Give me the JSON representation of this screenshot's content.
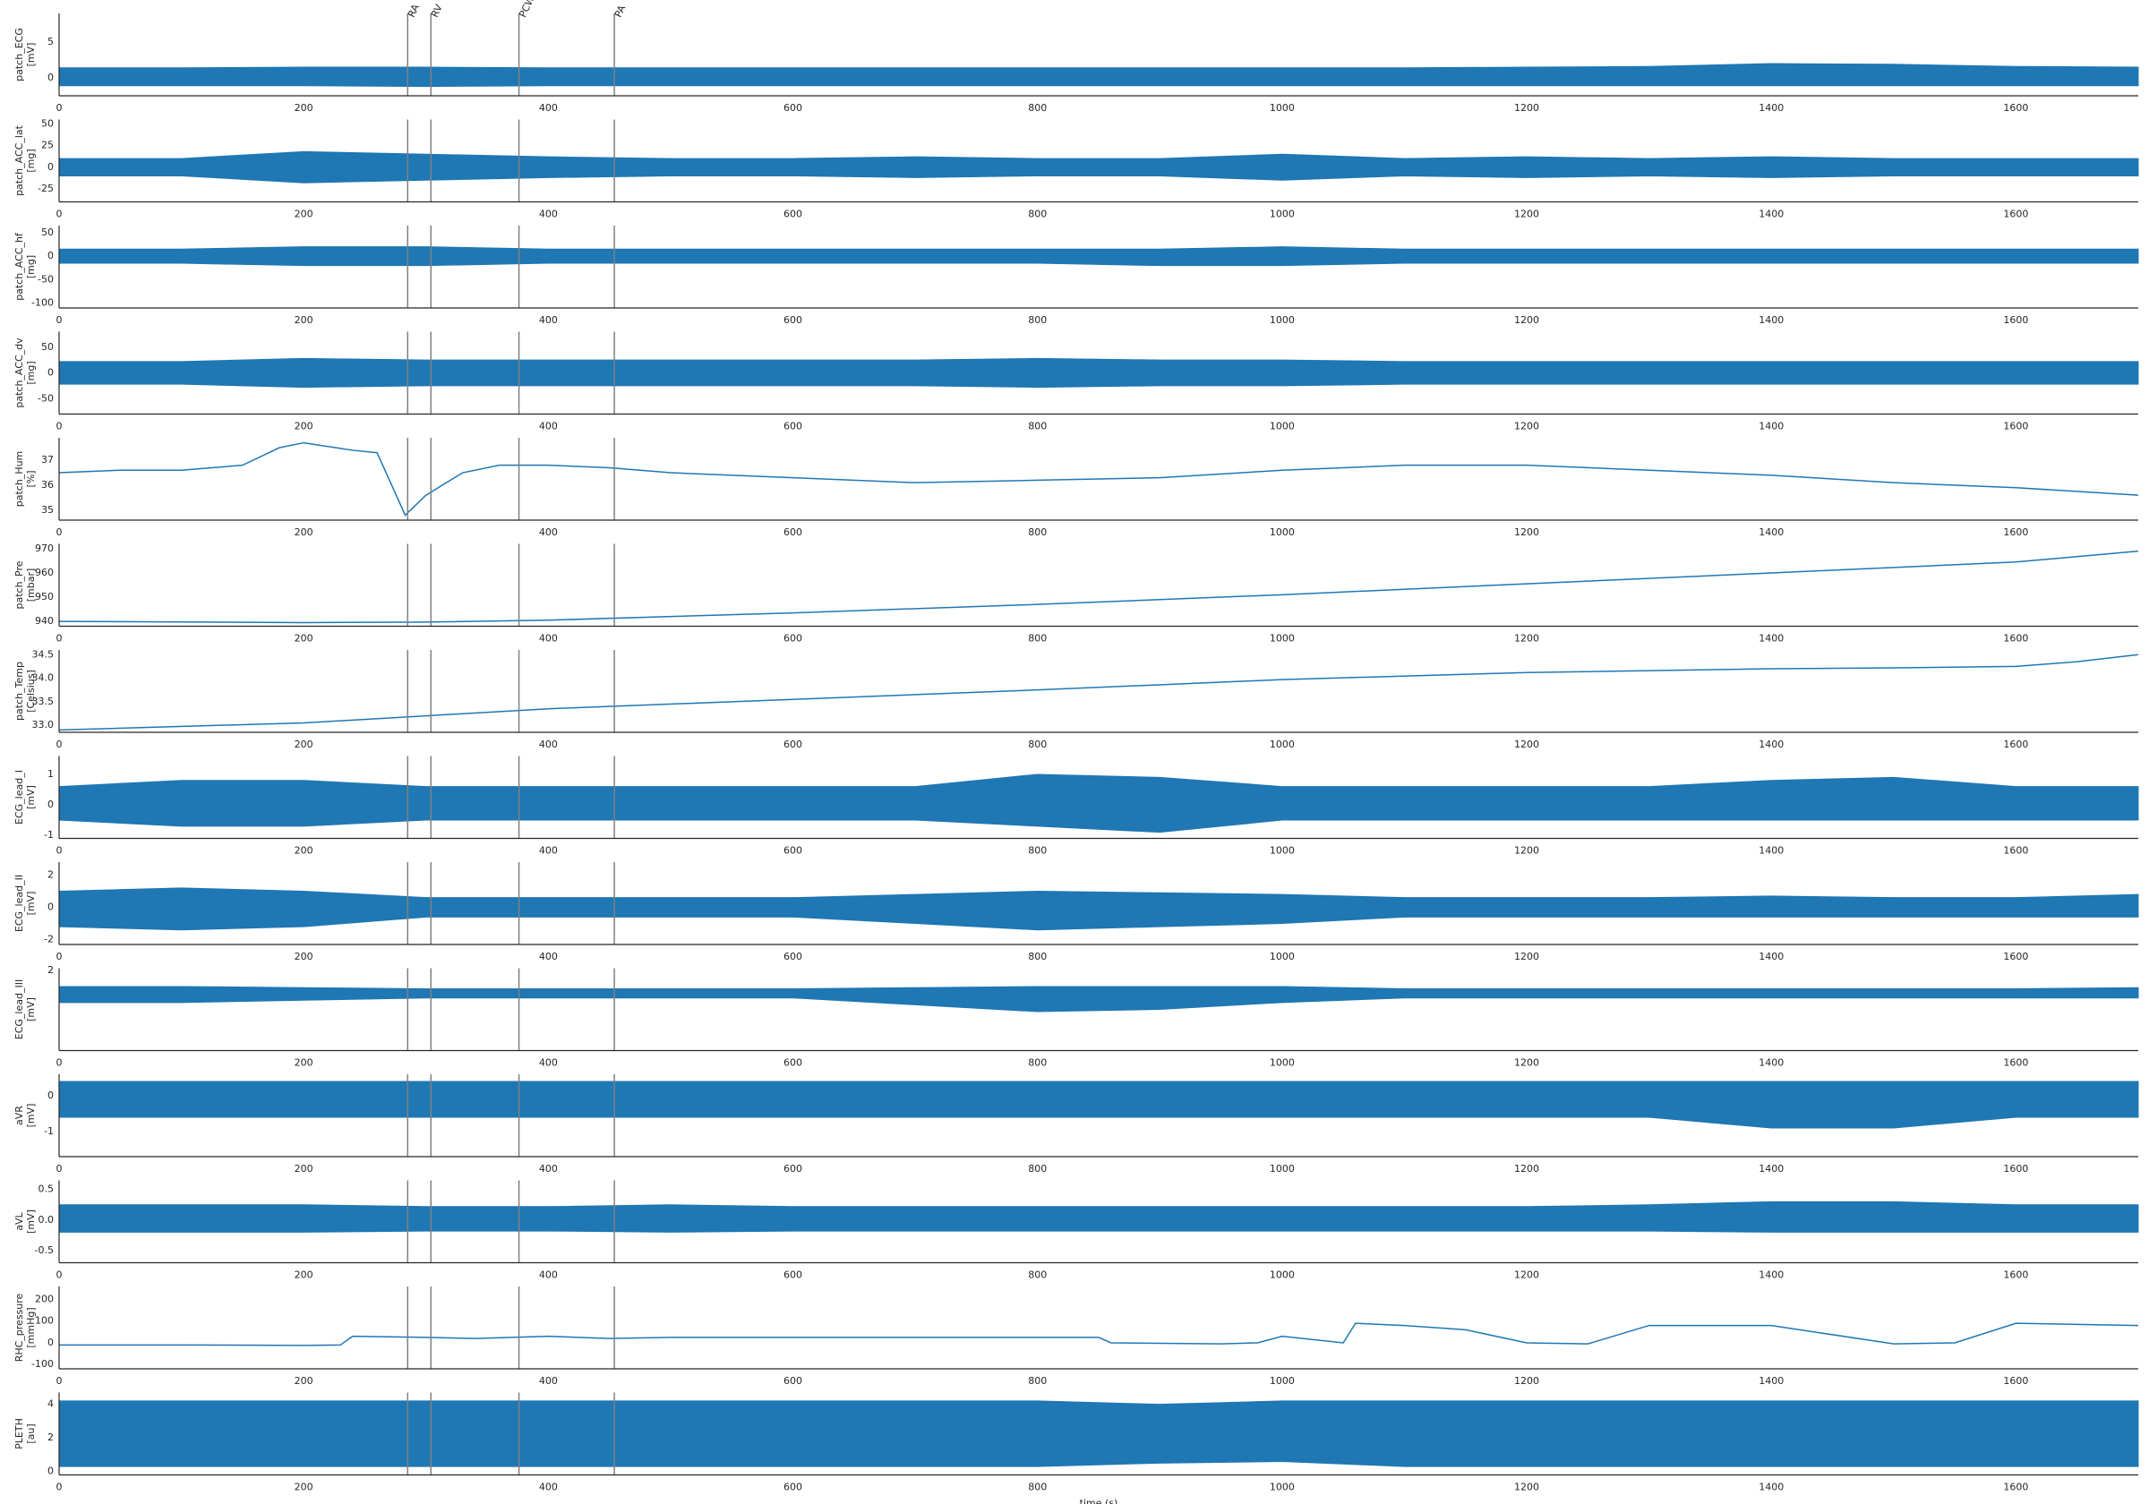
{
  "chart_data": [
    {
      "type": "band",
      "ylabel": [
        "patch_ECG",
        "[mV]"
      ],
      "color": "#1f77b4",
      "xlim": [
        0,
        1700
      ],
      "xticks": [
        0,
        200,
        400,
        600,
        800,
        1000,
        1200,
        1400,
        1600
      ],
      "ylim": [
        -2.5,
        9
      ],
      "yticks": [
        0,
        5
      ],
      "x": [
        0,
        100,
        200,
        300,
        400,
        500,
        600,
        700,
        800,
        900,
        1000,
        1100,
        1200,
        1300,
        1400,
        1500,
        1600,
        1700
      ],
      "high": [
        1.4,
        1.4,
        1.5,
        1.5,
        1.4,
        1.4,
        1.4,
        1.4,
        1.4,
        1.4,
        1.4,
        1.4,
        1.5,
        1.6,
        2.0,
        1.9,
        1.6,
        1.5
      ],
      "low": [
        -1.1,
        -1.1,
        -1.1,
        -1.2,
        -1.1,
        -1.1,
        -1.1,
        -1.1,
        -1.1,
        -1.1,
        -1.1,
        -1.1,
        -1.1,
        -1.1,
        -1.1,
        -1.1,
        -1.1,
        -1.1
      ],
      "vlines": [
        285,
        304,
        376,
        454
      ],
      "vline_labels": [
        "RA",
        "RV",
        "PCW",
        "PA"
      ]
    },
    {
      "type": "band",
      "ylabel": [
        "patch_ACC_lat",
        "[mg]"
      ],
      "color": "#1f77b4",
      "xlim": [
        0,
        1700
      ],
      "xticks": [
        0,
        200,
        400,
        600,
        800,
        1000,
        1200,
        1400,
        1600
      ],
      "ylim": [
        -40,
        55
      ],
      "yticks": [
        -25,
        0,
        25,
        50
      ],
      "x": [
        0,
        100,
        200,
        300,
        400,
        500,
        600,
        700,
        800,
        900,
        1000,
        1100,
        1200,
        1300,
        1400,
        1500,
        1600,
        1700
      ],
      "high": [
        10,
        10,
        18,
        15,
        12,
        10,
        10,
        12,
        10,
        10,
        15,
        10,
        12,
        10,
        12,
        10,
        10,
        10
      ],
      "low": [
        -10,
        -10,
        -18,
        -15,
        -12,
        -10,
        -10,
        -12,
        -10,
        -10,
        -15,
        -10,
        -12,
        -10,
        -12,
        -10,
        -10,
        -10
      ],
      "vlines": [
        285,
        304,
        376,
        454
      ]
    },
    {
      "type": "band",
      "ylabel": [
        "patch_ACC_hf",
        "[mg]"
      ],
      "color": "#1f77b4",
      "xlim": [
        0,
        1700
      ],
      "xticks": [
        0,
        200,
        400,
        600,
        800,
        1000,
        1200,
        1400,
        1600
      ],
      "ylim": [
        -110,
        65
      ],
      "yticks": [
        -100,
        -50,
        0,
        50
      ],
      "x": [
        0,
        100,
        200,
        300,
        400,
        500,
        600,
        700,
        800,
        900,
        1000,
        1100,
        1200,
        1300,
        1400,
        1500,
        1600,
        1700
      ],
      "high": [
        15,
        15,
        20,
        20,
        15,
        15,
        15,
        15,
        15,
        15,
        20,
        15,
        15,
        15,
        15,
        15,
        15,
        15
      ],
      "low": [
        -15,
        -15,
        -20,
        -20,
        -15,
        -15,
        -15,
        -15,
        -15,
        -20,
        -20,
        -15,
        -15,
        -15,
        -15,
        -15,
        -15,
        -15
      ],
      "vlines": [
        285,
        304,
        376,
        454
      ]
    },
    {
      "type": "band",
      "ylabel": [
        "patch_ACC_dv",
        "[mg]"
      ],
      "color": "#1f77b4",
      "xlim": [
        0,
        1700
      ],
      "xticks": [
        0,
        200,
        400,
        600,
        800,
        1000,
        1200,
        1400,
        1600
      ],
      "ylim": [
        -80,
        80
      ],
      "yticks": [
        -50,
        0,
        50
      ],
      "x": [
        0,
        100,
        200,
        300,
        400,
        500,
        600,
        700,
        800,
        900,
        1000,
        1100,
        1200,
        1300,
        1400,
        1500,
        1600,
        1700
      ],
      "high": [
        22,
        22,
        28,
        25,
        25,
        25,
        25,
        25,
        28,
        25,
        25,
        22,
        22,
        22,
        22,
        22,
        22,
        22
      ],
      "low": [
        -22,
        -22,
        -28,
        -25,
        -25,
        -25,
        -25,
        -25,
        -28,
        -25,
        -25,
        -22,
        -22,
        -22,
        -22,
        -22,
        -22,
        -22
      ],
      "vlines": [
        285,
        304,
        376,
        454
      ]
    },
    {
      "type": "line",
      "ylabel": [
        "patch_Hum",
        "[%]"
      ],
      "color": "#1f77b4",
      "xlim": [
        0,
        1700
      ],
      "xticks": [
        0,
        200,
        400,
        600,
        800,
        1000,
        1200,
        1400,
        1600
      ],
      "ylim": [
        34.6,
        37.9
      ],
      "yticks": [
        35,
        36,
        37
      ],
      "x": [
        0,
        50,
        100,
        150,
        180,
        200,
        240,
        260,
        283,
        300,
        330,
        360,
        400,
        450,
        500,
        600,
        700,
        800,
        900,
        1000,
        1100,
        1200,
        1300,
        1400,
        1500,
        1600,
        1700
      ],
      "values": [
        36.5,
        36.6,
        36.6,
        36.8,
        37.5,
        37.7,
        37.4,
        37.3,
        34.8,
        35.6,
        36.5,
        36.8,
        36.8,
        36.7,
        36.5,
        36.3,
        36.1,
        36.2,
        36.3,
        36.6,
        36.8,
        36.8,
        36.6,
        36.4,
        36.1,
        35.9,
        35.6
      ],
      "vlines": [
        285,
        304,
        376,
        454
      ]
    },
    {
      "type": "line",
      "ylabel": [
        "patch_Pre",
        "[mbar]"
      ],
      "color": "#1f77b4",
      "xlim": [
        0,
        1700
      ],
      "xticks": [
        0,
        200,
        400,
        600,
        800,
        1000,
        1200,
        1400,
        1600
      ],
      "ylim": [
        938,
        972
      ],
      "yticks": [
        940,
        950,
        960,
        970
      ],
      "x": [
        0,
        200,
        300,
        400,
        600,
        800,
        1000,
        1200,
        1400,
        1600,
        1700
      ],
      "values": [
        940,
        939.5,
        939.7,
        940.5,
        943.5,
        947,
        951,
        955.5,
        960,
        964.5,
        969
      ],
      "vlines": [
        285,
        304,
        376,
        454
      ]
    },
    {
      "type": "line",
      "ylabel": [
        "patch_Temp",
        "[Celsius]"
      ],
      "color": "#1f77b4",
      "xlim": [
        0,
        1700
      ],
      "xticks": [
        0,
        200,
        400,
        600,
        800,
        1000,
        1200,
        1400,
        1600
      ],
      "ylim": [
        32.85,
        34.6
      ],
      "yticks": [
        {
          "value": 33,
          "label": "33.0"
        },
        33.5,
        {
          "value": 34,
          "label": "34.0"
        },
        34.5
      ],
      "x": [
        0,
        200,
        300,
        400,
        600,
        800,
        1000,
        1200,
        1400,
        1500,
        1600,
        1650,
        1700
      ],
      "values": [
        32.9,
        33.05,
        33.2,
        33.35,
        33.55,
        33.75,
        33.97,
        34.12,
        34.2,
        34.22,
        34.25,
        34.35,
        34.5
      ],
      "vlines": [
        285,
        304,
        376,
        454
      ]
    },
    {
      "type": "band",
      "ylabel": [
        "ECG_lead_I",
        "[mV]"
      ],
      "color": "#1f77b4",
      "xlim": [
        0,
        1700
      ],
      "xticks": [
        0,
        200,
        400,
        600,
        800,
        1000,
        1200,
        1400,
        1600
      ],
      "ylim": [
        -1.1,
        1.6
      ],
      "yticks": [
        -1,
        0,
        1
      ],
      "x": [
        0,
        100,
        200,
        300,
        400,
        500,
        600,
        700,
        800,
        900,
        1000,
        1100,
        1200,
        1300,
        1400,
        1500,
        1600,
        1700
      ],
      "high": [
        0.6,
        0.8,
        0.8,
        0.6,
        0.6,
        0.6,
        0.6,
        0.6,
        1.0,
        0.9,
        0.6,
        0.6,
        0.6,
        0.6,
        0.8,
        0.9,
        0.6,
        0.6
      ],
      "low": [
        -0.5,
        -0.7,
        -0.7,
        -0.5,
        -0.5,
        -0.5,
        -0.5,
        -0.5,
        -0.7,
        -0.9,
        -0.5,
        -0.5,
        -0.5,
        -0.5,
        -0.5,
        -0.5,
        -0.5,
        -0.5
      ],
      "vlines": [
        285,
        304,
        376,
        454
      ]
    },
    {
      "type": "band",
      "ylabel": [
        "ECG_lead_II",
        "[mV]"
      ],
      "color": "#1f77b4",
      "xlim": [
        0,
        1700
      ],
      "xticks": [
        0,
        200,
        400,
        600,
        800,
        1000,
        1200,
        1400,
        1600
      ],
      "ylim": [
        -2.3,
        2.8
      ],
      "yticks": [
        -2,
        0,
        2
      ],
      "x": [
        0,
        100,
        200,
        300,
        400,
        500,
        600,
        700,
        800,
        900,
        1000,
        1100,
        1200,
        1300,
        1400,
        1500,
        1600,
        1700
      ],
      "high": [
        1.0,
        1.2,
        1.0,
        0.6,
        0.6,
        0.6,
        0.6,
        0.8,
        1.0,
        0.9,
        0.8,
        0.6,
        0.6,
        0.6,
        0.7,
        0.6,
        0.6,
        0.8
      ],
      "low": [
        -1.2,
        -1.4,
        -1.2,
        -0.6,
        -0.6,
        -0.6,
        -0.6,
        -1.0,
        -1.4,
        -1.2,
        -1.0,
        -0.6,
        -0.6,
        -0.6,
        -0.6,
        -0.6,
        -0.6,
        -0.6
      ],
      "vlines": [
        285,
        304,
        376,
        454
      ]
    },
    {
      "type": "band",
      "ylabel": [
        "ECG_lead_III",
        "[mV]"
      ],
      "color": "#1f77b4",
      "xlim": [
        0,
        1700
      ],
      "xticks": [
        0,
        200,
        400,
        600,
        800,
        1000,
        1200,
        1400,
        1600
      ],
      "ylim": [
        -5,
        2.2
      ],
      "yticks": [
        2
      ],
      "x": [
        0,
        100,
        200,
        300,
        400,
        500,
        600,
        700,
        800,
        900,
        1000,
        1100,
        1200,
        1300,
        1400,
        1500,
        1600,
        1700
      ],
      "high": [
        0.6,
        0.6,
        0.5,
        0.4,
        0.4,
        0.4,
        0.4,
        0.5,
        0.6,
        0.6,
        0.6,
        0.4,
        0.4,
        0.4,
        0.4,
        0.4,
        0.4,
        0.5
      ],
      "low": [
        -0.8,
        -0.8,
        -0.6,
        -0.4,
        -0.4,
        -0.4,
        -0.4,
        -1.0,
        -1.6,
        -1.4,
        -0.8,
        -0.4,
        -0.4,
        -0.4,
        -0.4,
        -0.4,
        -0.4,
        -0.4
      ],
      "vlines": [
        285,
        304,
        376,
        454
      ]
    },
    {
      "type": "band",
      "ylabel": [
        "aVR",
        "[mV]"
      ],
      "color": "#1f77b4",
      "xlim": [
        0,
        1700
      ],
      "xticks": [
        0,
        200,
        400,
        600,
        800,
        1000,
        1200,
        1400,
        1600
      ],
      "ylim": [
        -1.7,
        0.6
      ],
      "yticks": [
        -1,
        0
      ],
      "x": [
        0,
        100,
        200,
        300,
        400,
        500,
        600,
        700,
        800,
        900,
        1000,
        1100,
        1200,
        1300,
        1400,
        1500,
        1600,
        1700
      ],
      "high": [
        0.4,
        0.4,
        0.4,
        0.4,
        0.4,
        0.4,
        0.4,
        0.4,
        0.4,
        0.4,
        0.4,
        0.4,
        0.4,
        0.4,
        0.4,
        0.4,
        0.4,
        0.4
      ],
      "low": [
        -0.6,
        -0.6,
        -0.6,
        -0.6,
        -0.6,
        -0.6,
        -0.6,
        -0.6,
        -0.6,
        -0.6,
        -0.6,
        -0.6,
        -0.6,
        -0.6,
        -0.9,
        -0.9,
        -0.6,
        -0.6
      ],
      "vlines": [
        285,
        304,
        376,
        454
      ]
    },
    {
      "type": "band",
      "ylabel": [
        "aVL",
        "[mV]"
      ],
      "color": "#1f77b4",
      "xlim": [
        0,
        1700
      ],
      "xticks": [
        0,
        200,
        400,
        600,
        800,
        1000,
        1200,
        1400,
        1600
      ],
      "ylim": [
        -0.7,
        0.65
      ],
      "yticks": [
        -0.5,
        {
          "value": 0,
          "label": "0.0"
        },
        0.5
      ],
      "x": [
        0,
        100,
        200,
        300,
        400,
        500,
        600,
        700,
        800,
        900,
        1000,
        1100,
        1200,
        1300,
        1400,
        1500,
        1600,
        1700
      ],
      "high": [
        0.25,
        0.25,
        0.25,
        0.22,
        0.22,
        0.25,
        0.22,
        0.22,
        0.22,
        0.22,
        0.22,
        0.22,
        0.22,
        0.25,
        0.3,
        0.3,
        0.25,
        0.25
      ],
      "low": [
        -0.2,
        -0.2,
        -0.2,
        -0.18,
        -0.18,
        -0.2,
        -0.18,
        -0.18,
        -0.18,
        -0.18,
        -0.18,
        -0.18,
        -0.18,
        -0.18,
        -0.2,
        -0.2,
        -0.2,
        -0.2
      ],
      "vlines": [
        285,
        304,
        376,
        454
      ]
    },
    {
      "type": "line",
      "ylabel": [
        "RHC_pressure",
        "[mmHg]"
      ],
      "color": "#1f77b4",
      "xlim": [
        0,
        1700
      ],
      "xticks": [
        0,
        200,
        400,
        600,
        800,
        1000,
        1200,
        1400,
        1600
      ],
      "ylim": [
        -120,
        260
      ],
      "yticks": [
        -100,
        0,
        100,
        200
      ],
      "x": [
        0,
        100,
        200,
        230,
        240,
        300,
        340,
        400,
        450,
        500,
        600,
        700,
        850,
        860,
        950,
        980,
        1000,
        1050,
        1060,
        1100,
        1150,
        1200,
        1250,
        1300,
        1400,
        1500,
        1550,
        1600,
        1700
      ],
      "values": [
        -10,
        -10,
        -12,
        -10,
        30,
        25,
        20,
        30,
        20,
        25,
        25,
        25,
        25,
        0,
        -5,
        0,
        30,
        0,
        90,
        80,
        60,
        0,
        -5,
        80,
        80,
        -5,
        0,
        90,
        80
      ],
      "vlines": [
        285,
        304,
        376,
        454
      ]
    },
    {
      "type": "band",
      "ylabel": [
        "PLETH",
        "[au]"
      ],
      "color": "#1f77b4",
      "xlim": [
        0,
        1700
      ],
      "xticks": [
        0,
        200,
        400,
        600,
        800,
        1000,
        1200,
        1400,
        1600
      ],
      "ylim": [
        -0.2,
        4.7
      ],
      "yticks": [
        0,
        2,
        4
      ],
      "x": [
        0,
        100,
        200,
        300,
        400,
        500,
        600,
        700,
        800,
        900,
        1000,
        1100,
        1200,
        1300,
        1400,
        1500,
        1600,
        1700
      ],
      "high": [
        4.2,
        4.2,
        4.2,
        4.2,
        4.2,
        4.2,
        4.2,
        4.2,
        4.2,
        4.0,
        4.2,
        4.2,
        4.2,
        4.2,
        4.2,
        4.2,
        4.2,
        4.2
      ],
      "low": [
        0.3,
        0.3,
        0.3,
        0.3,
        0.3,
        0.3,
        0.3,
        0.3,
        0.3,
        0.5,
        0.6,
        0.3,
        0.3,
        0.3,
        0.3,
        0.3,
        0.3,
        0.3
      ],
      "vlines": [
        285,
        304,
        376,
        454
      ],
      "xlabel": "time (s)"
    }
  ]
}
